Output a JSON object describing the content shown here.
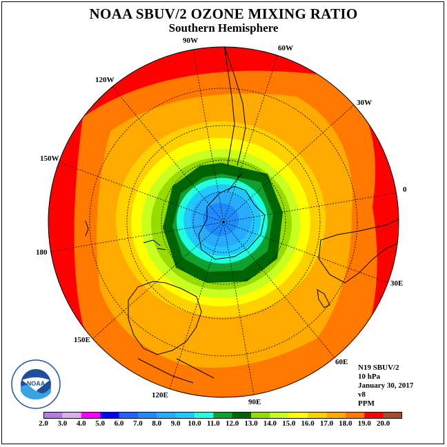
{
  "title": "NOAA SBUV/2 OZONE MIXING RATIO",
  "subtitle": "Southern Hemisphere",
  "longitude_labels": [
    "90W",
    "60W",
    "30W",
    "0",
    "30E",
    "60E",
    "90E",
    "120E",
    "150E",
    "180",
    "150W",
    "120W"
  ],
  "info": {
    "satellite": "N19 SBUV/2",
    "level": "10 hPa",
    "date": "January 30, 2017",
    "version": "v8",
    "units": "PPM"
  },
  "logo": {
    "text": "NOAA"
  },
  "colorbar": {
    "ticks": [
      "2.0",
      "3.0",
      "4.0",
      "5.0",
      "6.0",
      "7.0",
      "8.0",
      "9.0",
      "10.0",
      "11.0",
      "12.0",
      "13.0",
      "14.0",
      "15.0",
      "16.0",
      "17.0",
      "18.0",
      "19.0",
      "20.0"
    ],
    "colors": [
      "#b07de0",
      "#d8b0f0",
      "#ff00ff",
      "#0000ff",
      "#1e64ff",
      "#1e8cff",
      "#28aaff",
      "#20c8ff",
      "#20ffe0",
      "#10a030",
      "#006400",
      "#96dc00",
      "#c8ff20",
      "#ffff00",
      "#ffd000",
      "#ffaa00",
      "#ff7800",
      "#ff0000",
      "#a05028"
    ]
  },
  "map_data": {
    "projection": "polar stereographic, south pole",
    "contour_levels_ppm": [
      {
        "level": 18.5,
        "color": "#ff0000"
      },
      {
        "level": 17.5,
        "color": "#ff7800"
      },
      {
        "level": 16.5,
        "color": "#ffaa00"
      },
      {
        "level": 15.5,
        "color": "#ffd000"
      },
      {
        "level": 14.5,
        "color": "#ffff00"
      },
      {
        "level": 13.5,
        "color": "#c8ff20"
      },
      {
        "level": 12.5,
        "color": "#96dc00"
      },
      {
        "level": 11.5,
        "color": "#006400"
      },
      {
        "level": 10.5,
        "color": "#10a030"
      },
      {
        "level": 9.5,
        "color": "#20ffe0"
      },
      {
        "level": 8.5,
        "color": "#20c8ff"
      },
      {
        "level": 7.5,
        "color": "#28aaff"
      },
      {
        "level": 6.5,
        "color": "#1e8cff"
      }
    ]
  }
}
